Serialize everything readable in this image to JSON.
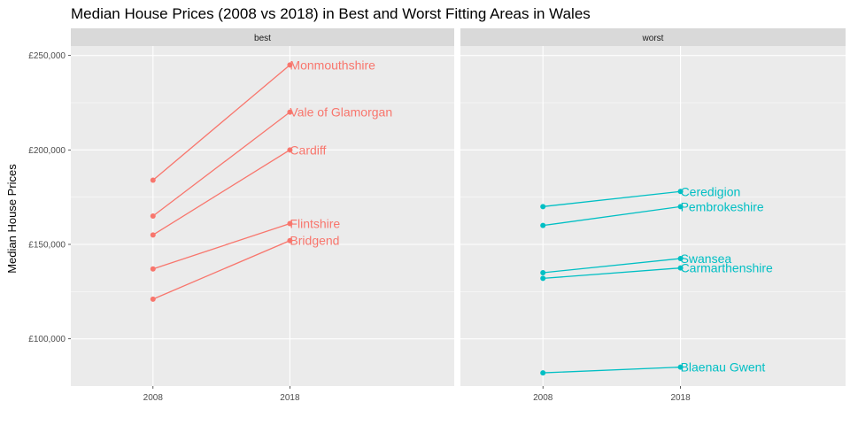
{
  "chart_data": {
    "type": "line",
    "title": "Median House Prices (2008 vs 2018) in Best and Worst Fitting Areas in Wales",
    "xlabel": "",
    "ylabel": "Median House Prices",
    "x_categories": [
      "2008",
      "2018"
    ],
    "ylim": [
      75000,
      255000
    ],
    "y_ticks": [
      100000,
      150000,
      200000,
      250000
    ],
    "y_tick_labels": [
      "£100,000",
      "£150,000",
      "£200,000",
      "£250,000"
    ],
    "grid": true,
    "legend": "none",
    "facets": [
      {
        "strip": "best",
        "color": "#f8766d",
        "series": [
          {
            "name": "Monmouthshire",
            "values": [
              184000,
              245000
            ]
          },
          {
            "name": "Vale of Glamorgan",
            "values": [
              165000,
              220000
            ]
          },
          {
            "name": "Cardiff",
            "values": [
              155000,
              200000
            ]
          },
          {
            "name": "Flintshire",
            "values": [
              137000,
              161000
            ]
          },
          {
            "name": "Bridgend",
            "values": [
              121000,
              152000
            ]
          }
        ]
      },
      {
        "strip": "worst",
        "color": "#00bfc4",
        "series": [
          {
            "name": "Ceredigion",
            "values": [
              170000,
              178000
            ]
          },
          {
            "name": "Pembrokeshire",
            "values": [
              160000,
              170000
            ]
          },
          {
            "name": "Swansea",
            "values": [
              135000,
              142500
            ]
          },
          {
            "name": "Carmarthenshire",
            "values": [
              132000,
              137500
            ]
          },
          {
            "name": "Blaenau Gwent",
            "values": [
              82000,
              85000
            ]
          }
        ]
      }
    ]
  }
}
